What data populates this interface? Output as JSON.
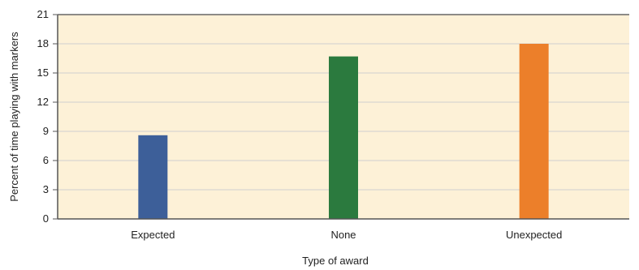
{
  "chart_data": {
    "type": "bar",
    "title": "",
    "xlabel": "Type of award",
    "ylabel": "Percent of time playing with markers",
    "categories": [
      "Expected",
      "None",
      "Unexpected"
    ],
    "values": [
      8.6,
      16.7,
      18.0
    ],
    "ylim": [
      0,
      21
    ],
    "yticks": [
      0,
      3,
      6,
      9,
      12,
      15,
      18,
      21
    ],
    "ytick_labels": [
      "0",
      "3",
      "6",
      "9",
      "12",
      "15",
      "18",
      "21"
    ],
    "grid": true,
    "bar_colors": [
      "#3d5f99",
      "#2b7a3e",
      "#ec7f2a"
    ],
    "plot_background": "#fdf1d7",
    "gridline_color": "#cfcfcf"
  }
}
